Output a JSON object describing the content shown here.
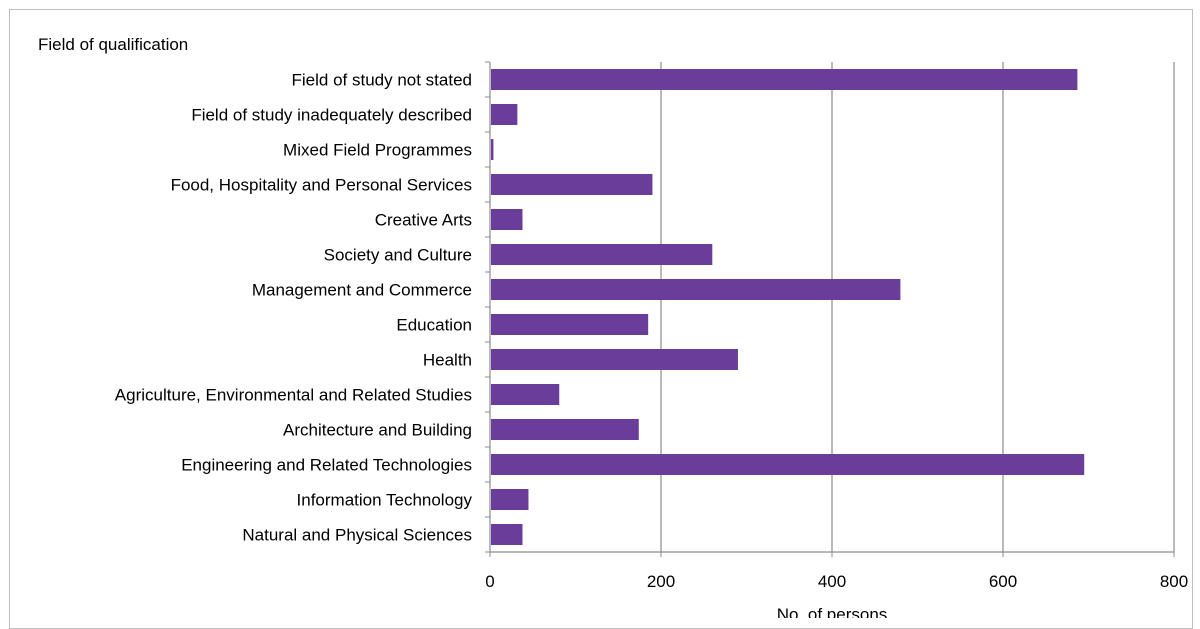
{
  "chart_data": {
    "type": "bar",
    "orientation": "horizontal",
    "ylabel": "Field of qualification",
    "xlabel": "No. of persons",
    "xlim": [
      0,
      800
    ],
    "xticks": [
      0,
      200,
      400,
      600,
      800
    ],
    "grid": true,
    "bar_color": "#6a3d9a",
    "categories": [
      "Field of study not stated",
      "Field of study inadequately described",
      "Mixed Field Programmes",
      "Food, Hospitality and Personal Services",
      "Creative Arts",
      "Society and Culture",
      "Management and Commerce",
      "Education",
      "Health",
      "Agriculture, Environmental and Related Studies",
      "Architecture and Building",
      "Engineering and Related Technologies",
      "Information Technology",
      "Natural and Physical Sciences"
    ],
    "values": [
      687,
      32,
      4,
      190,
      38,
      260,
      480,
      185,
      290,
      81,
      174,
      695,
      45,
      38
    ]
  }
}
